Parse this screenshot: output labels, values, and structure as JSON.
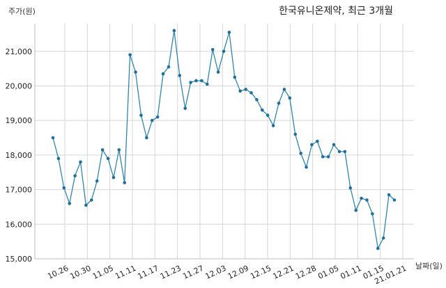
{
  "chart_data": {
    "type": "line",
    "title": "한국유니온제약, 최근 3개월",
    "ylabel": "주가(원)",
    "xlabel": "날짜(일)",
    "ylim": [
      15000,
      21800
    ],
    "yticks": [
      15000,
      16000,
      17000,
      18000,
      19000,
      20000,
      21000
    ],
    "ytick_labels": [
      "15,000",
      "16,000",
      "17,000",
      "18,000",
      "19,000",
      "20,000",
      "21,000"
    ],
    "xtick_labels": [
      "10.26",
      "10.30",
      "11.05",
      "11.11",
      "11.17",
      "11.23",
      "11.27",
      "12.03",
      "12.09",
      "12.15",
      "12.21",
      "12.28",
      "01.05",
      "01.11",
      "01.15",
      "21.01.21"
    ],
    "grid": true,
    "color": "#2e86b1",
    "series": [
      {
        "values": [
          18500,
          17900,
          17050,
          16600,
          17400,
          17800,
          16550,
          16700,
          17250,
          18150,
          17900,
          17350,
          18150,
          17200,
          20900,
          20400,
          19150,
          18500,
          19000,
          19100,
          20350,
          20550,
          21600,
          20300,
          19350,
          20100,
          20150,
          20150,
          20050,
          21050,
          20400,
          21000,
          21550,
          20250,
          19850,
          19900,
          19800,
          19600,
          19300,
          19150,
          18850,
          19500,
          19900,
          19650,
          18600,
          18050,
          17650,
          18300,
          18400,
          17950,
          17950,
          18300,
          18100,
          18100,
          17050,
          16400,
          16750,
          16700,
          16300,
          15300,
          15600,
          16850,
          16700
        ]
      }
    ]
  }
}
